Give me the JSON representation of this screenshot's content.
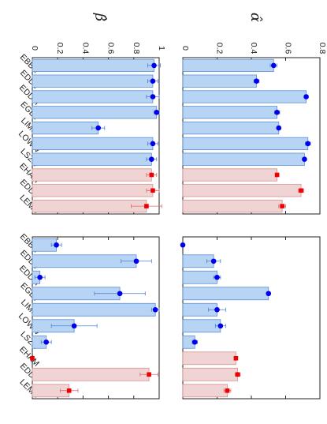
{
  "chart_data": [
    {
      "type": "bar",
      "panel": "alpha-left",
      "ylabel": "α̂",
      "ylim": [
        0,
        0.8
      ],
      "ticks": [
        "0",
        "0.2",
        "0.4",
        "0.6",
        "0.8"
      ],
      "categories": [
        "EBBR",
        "EDDL",
        "EDDM",
        "EGLL",
        "LIMC",
        "LOWW",
        "LSZH",
        "EHAM",
        "EDDF",
        "LEMD"
      ],
      "series": [
        {
          "values": [
            0.53,
            0.43,
            0.72,
            0.55,
            0.56,
            0.73,
            0.71,
            0.55,
            0.69,
            0.58
          ],
          "errors": [
            0.02,
            0.015,
            0.01,
            0.015,
            0.01,
            0.015,
            0.01,
            0.01,
            0.015,
            0.02
          ]
        }
      ],
      "colors": {
        "blue": "#0000ee",
        "red": "#ee0000",
        "blue_fill": "#b8d4f4",
        "red_fill": "#f0d3d3"
      }
    },
    {
      "type": "bar",
      "panel": "alpha-right",
      "ylim": [
        0,
        0.8
      ],
      "categories": [
        "EBBR",
        "EDDL",
        "EDDM",
        "EGLL",
        "LIMC",
        "LOWW",
        "LSZH",
        "EHAM",
        "EDDF",
        "LEMD"
      ],
      "series": [
        {
          "values": [
            0.0,
            0.18,
            0.2,
            0.5,
            0.2,
            0.22,
            0.07,
            0.31,
            0.32,
            0.26
          ],
          "errors": [
            0.0,
            0.04,
            0.02,
            0.01,
            0.05,
            0.03,
            0.015,
            0.01,
            0.015,
            0.02
          ]
        }
      ]
    },
    {
      "type": "bar",
      "panel": "beta-left",
      "ylabel": "β̂",
      "ylim": [
        0,
        1
      ],
      "ticks": [
        "0",
        "0.2",
        "0.4",
        "0.6",
        "0.8",
        "1"
      ],
      "categories": [
        "EBBR",
        "EDDL",
        "EDDM",
        "EGLL",
        "LIMC",
        "LOWW",
        "LSZH",
        "EHAM",
        "EDDF",
        "LEMD"
      ],
      "series": [
        {
          "values": [
            0.96,
            0.95,
            0.95,
            0.98,
            0.52,
            0.95,
            0.94,
            0.94,
            0.95,
            0.9
          ],
          "errors": [
            0.05,
            0.04,
            0.05,
            0.02,
            0.05,
            0.04,
            0.04,
            0.04,
            0.05,
            0.12
          ]
        }
      ]
    },
    {
      "type": "bar",
      "panel": "beta-right",
      "ylim": [
        0,
        1
      ],
      "categories": [
        "EBBR",
        "EDDL",
        "EDDM",
        "EGLL",
        "LIMC",
        "LOWW",
        "LSZH",
        "EHAM",
        "EDDF",
        "LEMD"
      ],
      "series": [
        {
          "values": [
            0.19,
            0.82,
            0.06,
            0.69,
            0.97,
            0.33,
            0.11,
            0.0,
            0.92,
            0.29
          ],
          "errors": [
            0.04,
            0.12,
            0.04,
            0.2,
            0.03,
            0.18,
            0.04,
            0.0,
            0.07,
            0.07
          ]
        }
      ]
    }
  ]
}
